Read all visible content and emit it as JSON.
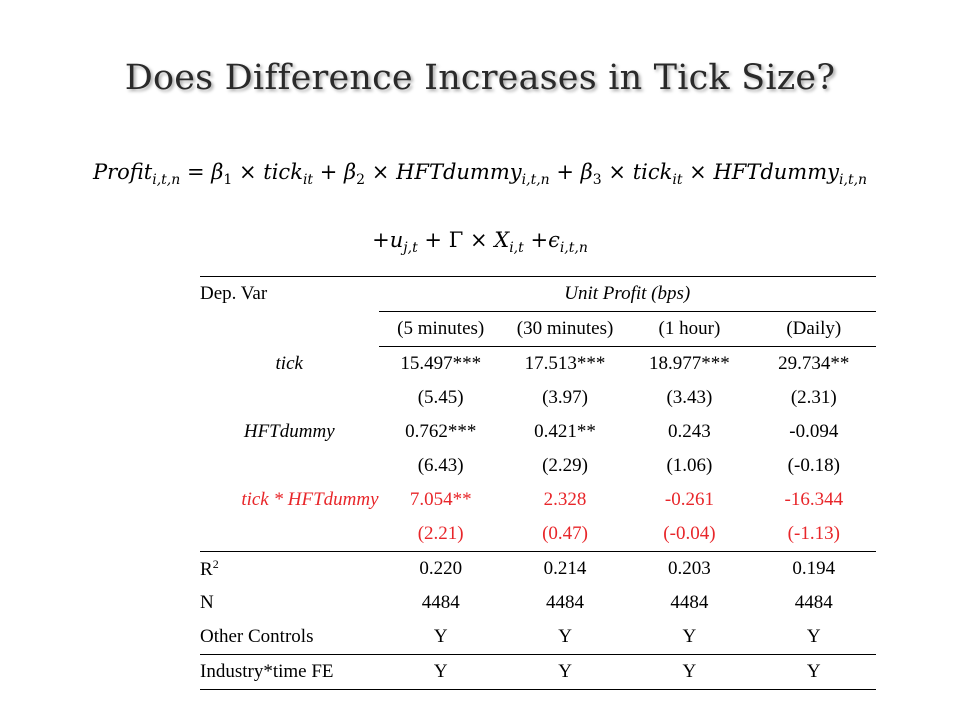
{
  "title": "Does Difference Increases in Tick Size?",
  "equation": {
    "line1": {
      "lhs": "Profit",
      "lhs_sub": "i,t,n",
      "eq": "=",
      "b1": "β",
      "b1_sub": "1",
      "times1": "×",
      "tick1": "tick",
      "tick1_sub": "it",
      "plus1": "+",
      "b2": "β",
      "b2_sub": "2",
      "times2": "×",
      "hft1": "HFTdummy",
      "hft1_sub": "i,t,n",
      "plus2": "+",
      "b3": "β",
      "b3_sub": "3",
      "times3": "×",
      "tick2": "tick",
      "tick2_sub": "it",
      "times4": "×",
      "hft2": "HFTdummy",
      "hft2_sub": "i,t,n"
    },
    "line2": {
      "plus1": "+",
      "u": "u",
      "u_sub": "j,t",
      "plus2": "+",
      "gamma": "Γ",
      "times": "×",
      "x": "X",
      "x_sub": "i,t",
      "plus3": "+",
      "eps": "ϵ",
      "eps_sub": "i,t,n"
    }
  },
  "table": {
    "dep_var_label": "Dep. Var",
    "dep_var": "Unit Profit (bps)",
    "columns": [
      "(5 minutes)",
      "(30 minutes)",
      "(1 hour)",
      "(Daily)"
    ],
    "rows": {
      "tick": {
        "label": "tick",
        "coef": [
          "15.497***",
          "17.513***",
          "18.977***",
          "29.734**"
        ],
        "t": [
          "(5.45)",
          "(3.97)",
          "(3.43)",
          "(2.31)"
        ]
      },
      "hft": {
        "label": "HFTdummy",
        "coef": [
          "0.762***",
          "0.421**",
          "0.243",
          "-0.094"
        ],
        "t": [
          "(6.43)",
          "(2.29)",
          "(1.06)",
          "(-0.18)"
        ]
      },
      "inter": {
        "label": "tick * HFTdummy",
        "coef": [
          "7.054**",
          "2.328",
          "-0.261",
          "-16.344"
        ],
        "t": [
          "(2.21)",
          "(0.47)",
          "(-0.04)",
          "(-1.13)"
        ]
      }
    },
    "r2": {
      "label": "R",
      "sup": "2",
      "values": [
        "0.220",
        "0.214",
        "0.203",
        "0.194"
      ]
    },
    "n": {
      "label": "N",
      "values": [
        "4484",
        "4484",
        "4484",
        "4484"
      ]
    },
    "controls": {
      "label": "Other Controls",
      "values": [
        "Y",
        "Y",
        "Y",
        "Y"
      ]
    },
    "fe": {
      "label": "Industry*time FE",
      "values": [
        "Y",
        "Y",
        "Y",
        "Y"
      ]
    }
  },
  "colors": {
    "highlight": "#e8262a",
    "title": "#2a2a2a"
  }
}
